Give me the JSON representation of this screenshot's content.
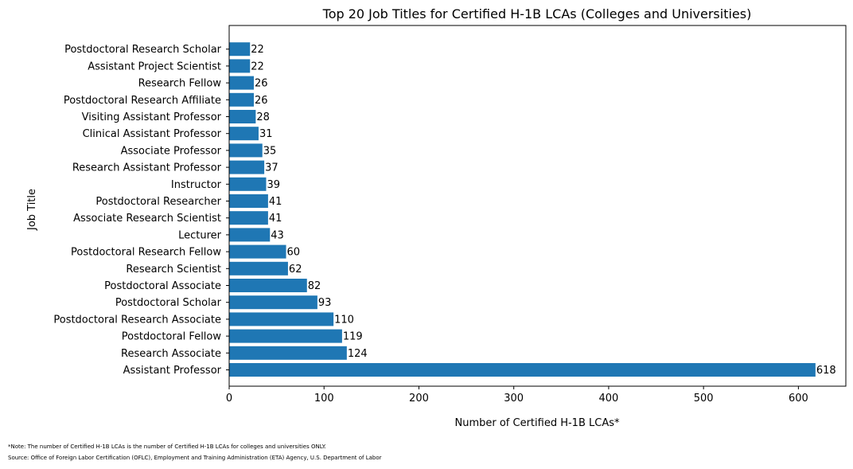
{
  "chart_data": {
    "type": "bar",
    "orientation": "horizontal",
    "title": "Top 20 Job Titles for Certified H-1B LCAs (Colleges and Universities)",
    "xlabel": "Number of Certified H-1B LCAs*",
    "ylabel": "Job Title",
    "xlim": [
      0,
      650
    ],
    "xticks": [
      0,
      100,
      200,
      300,
      400,
      500,
      600
    ],
    "grid": false,
    "bar_color": "#1f77b4",
    "categories": [
      "Assistant Professor",
      "Research Associate",
      "Postdoctoral Fellow",
      "Postdoctoral Research Associate",
      "Postdoctoral Scholar",
      "Postdoctoral Associate",
      "Research Scientist",
      "Postdoctoral Research Fellow",
      "Lecturer",
      "Associate Research Scientist",
      "Postdoctoral Researcher",
      "Instructor",
      "Research Assistant Professor",
      "Associate Professor",
      "Clinical Assistant Professor",
      "Visiting Assistant Professor",
      "Postdoctoral Research Affiliate",
      "Research Fellow",
      "Assistant Project Scientist",
      "Postdoctoral Research Scholar"
    ],
    "values": [
      618,
      124,
      119,
      110,
      93,
      82,
      62,
      60,
      43,
      41,
      41,
      39,
      37,
      35,
      31,
      28,
      26,
      26,
      22,
      22
    ]
  },
  "footnotes": {
    "note": "*Note: The number of Certified H-1B LCAs is the number of Certified H-1B LCAs for colleges and universities ONLY.",
    "source": "Source: Office of Foreign Labor Certification (OFLC), Employment and Training Administration (ETA) Agency, U.S. Department of Labor"
  }
}
